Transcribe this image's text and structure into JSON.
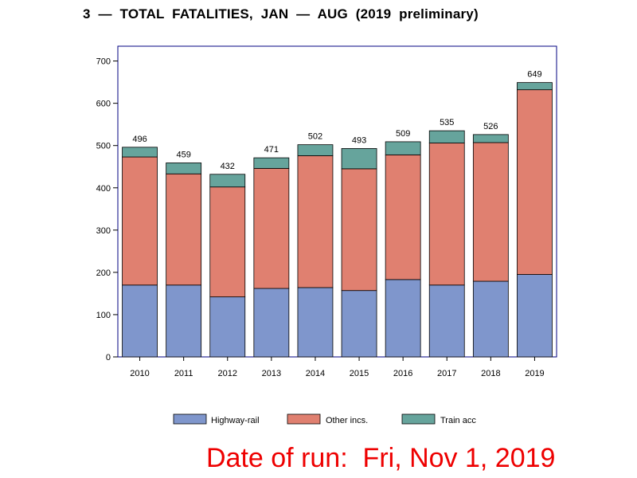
{
  "title": "3  —  TOTAL  FATALITIES,  JAN  —  AUG  (2019  preliminary)",
  "run_date": "Date of run:  Fri, Nov 1, 2019",
  "chart_data": {
    "type": "bar",
    "stacked": true,
    "categories": [
      "2010",
      "2011",
      "2012",
      "2013",
      "2014",
      "2015",
      "2016",
      "2017",
      "2018",
      "2019"
    ],
    "series": [
      {
        "name": "Highway-rail",
        "color": "#7f96cc",
        "values": [
          170,
          170,
          142,
          162,
          164,
          157,
          183,
          170,
          179,
          195
        ]
      },
      {
        "name": "Other incs.",
        "color": "#e08070",
        "values": [
          303,
          263,
          260,
          284,
          312,
          288,
          295,
          336,
          328,
          437
        ]
      },
      {
        "name": "Train acc",
        "color": "#66a49c",
        "values": [
          23,
          26,
          30,
          25,
          26,
          48,
          31,
          29,
          19,
          17
        ]
      }
    ],
    "totals": [
      496,
      459,
      432,
      471,
      502,
      493,
      509,
      535,
      526,
      649
    ],
    "yticks": [
      0,
      100,
      200,
      300,
      400,
      500,
      600,
      700
    ],
    "ylim": [
      0,
      735
    ],
    "xlabel": "",
    "ylabel": "",
    "legend_position": "bottom"
  }
}
